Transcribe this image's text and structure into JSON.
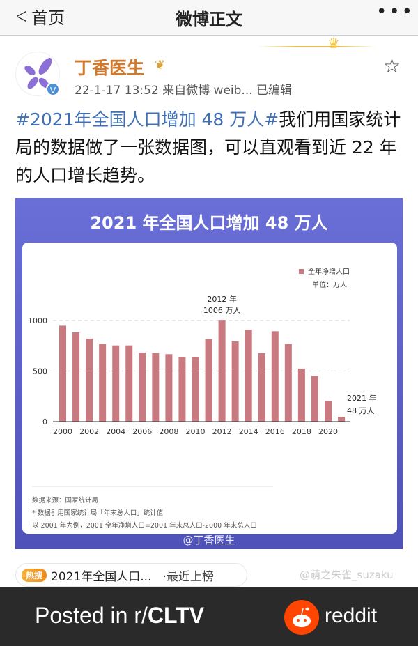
{
  "header": {
    "back_label": "首页",
    "title": "微博正文",
    "more_icon": "ellipsis-icon"
  },
  "post": {
    "author": "丁香医生",
    "meta": "22-1-17 13:52  来自微博 weib...  已编辑",
    "hashtag": "#2021年全国人口增加 48 万人#",
    "text": "我们用国家统计局的数据做了一张数据图，可以直观看到近 22 年的人口增长趋势。"
  },
  "chart_image": {
    "watermark": "@丁香医生",
    "notes": [
      "数据来源：国家统计局",
      "* 数据引用国家统计局「年末总人口」统计值",
      "以 2001 年为例，2001 全年净增人口=2001 年末总人口-2000 年末总人口"
    ]
  },
  "chart_data": {
    "type": "bar",
    "title": "2021 年全国人口增加 48 万人",
    "legend": "全年净增人口",
    "unit": "单位：万人",
    "legend_position": "top-right",
    "categories": [
      "2000",
      "2001",
      "2002",
      "2003",
      "2004",
      "2005",
      "2006",
      "2007",
      "2008",
      "2009",
      "2010",
      "2011",
      "2012",
      "2013",
      "2014",
      "2015",
      "2016",
      "2017",
      "2018",
      "2019",
      "2020",
      "2021"
    ],
    "x_tick_labels": [
      "2000",
      "2002",
      "2004",
      "2006",
      "2008",
      "2010",
      "2012",
      "2014",
      "2016",
      "2018",
      "2020"
    ],
    "values": [
      949,
      883,
      821,
      768,
      754,
      754,
      683,
      678,
      667,
      639,
      639,
      818,
      1006,
      793,
      910,
      678,
      894,
      768,
      524,
      453,
      204,
      48
    ],
    "ylim": [
      0,
      1000
    ],
    "y_ticks": [
      "0",
      "500",
      "1000"
    ],
    "grid": "dashed horizontal",
    "bar_color": "#c97a80",
    "annotations": [
      {
        "year": "2012 年",
        "value": "1006 万人"
      },
      {
        "year": "2021 年",
        "value": "48 万人"
      }
    ]
  },
  "hot_search": {
    "badge": "热搜",
    "text": "2021年全国人口...",
    "sub": "·最近上榜"
  },
  "image_watermark": "@萌之朱雀_suzaku",
  "footer": {
    "posted_prefix": "Posted in r/",
    "subreddit": "CLTV",
    "brand": "reddit"
  }
}
